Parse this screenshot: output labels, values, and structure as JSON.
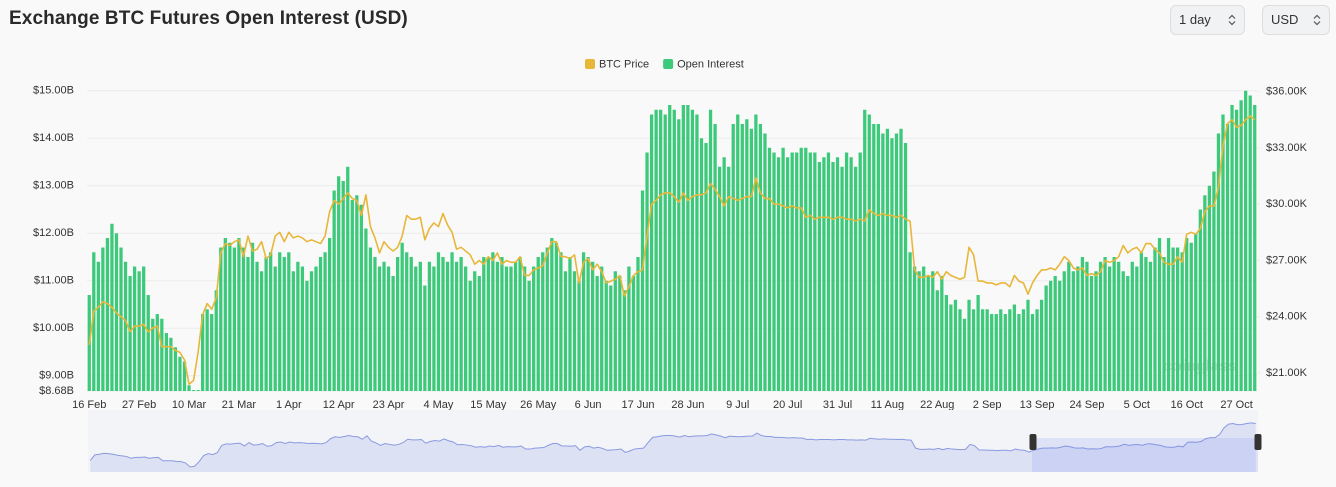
{
  "title": "Exchange BTC Futures Open Interest (USD)",
  "controls": {
    "interval": "1 day",
    "currency": "USD"
  },
  "chart_data": {
    "type": "bar",
    "watermark": "coinglass",
    "categories": [
      "16 Feb",
      null,
      null,
      null,
      null,
      null,
      null,
      null,
      null,
      null,
      null,
      "27 Feb",
      null,
      null,
      null,
      null,
      null,
      null,
      null,
      null,
      null,
      null,
      "10 Mar",
      null,
      null,
      null,
      null,
      null,
      null,
      null,
      null,
      null,
      null,
      "21 Mar",
      null,
      null,
      null,
      null,
      null,
      null,
      null,
      null,
      null,
      null,
      "1 Apr",
      null,
      null,
      null,
      null,
      null,
      null,
      null,
      null,
      null,
      null,
      "12 Apr",
      null,
      null,
      null,
      null,
      null,
      null,
      null,
      null,
      null,
      null,
      "23 Apr",
      null,
      null,
      null,
      null,
      null,
      null,
      null,
      null,
      null,
      null,
      "4 May",
      null,
      null,
      null,
      null,
      null,
      null,
      null,
      null,
      null,
      null,
      "15 May",
      null,
      null,
      null,
      null,
      null,
      null,
      null,
      null,
      null,
      null,
      "26 May",
      null,
      null,
      null,
      null,
      null,
      null,
      null,
      null,
      null,
      null,
      "6 Jun",
      null,
      null,
      null,
      null,
      null,
      null,
      null,
      null,
      null,
      null,
      "17 Jun",
      null,
      null,
      null,
      null,
      null,
      null,
      null,
      null,
      null,
      null,
      "28 Jun",
      null,
      null,
      null,
      null,
      null,
      null,
      null,
      null,
      null,
      null,
      "9 Jul",
      null,
      null,
      null,
      null,
      null,
      null,
      null,
      null,
      null,
      null,
      "20 Jul",
      null,
      null,
      null,
      null,
      null,
      null,
      null,
      null,
      null,
      null,
      "31 Jul",
      null,
      null,
      null,
      null,
      null,
      null,
      null,
      null,
      null,
      null,
      "11 Aug",
      null,
      null,
      null,
      null,
      null,
      null,
      null,
      null,
      null,
      null,
      "22 Aug",
      null,
      null,
      null,
      null,
      null,
      null,
      null,
      null,
      null,
      null,
      "2 Sep",
      null,
      null,
      null,
      null,
      null,
      null,
      null,
      null,
      null,
      null,
      "13 Sep",
      null,
      null,
      null,
      null,
      null,
      null,
      null,
      null,
      null,
      null,
      "24 Sep",
      null,
      null,
      null,
      null,
      null,
      null,
      null,
      null,
      null,
      null,
      "5 Oct",
      null,
      null,
      null,
      null,
      null,
      null,
      null,
      null,
      null,
      null,
      "16 Oct",
      null,
      null,
      null,
      null,
      null,
      null,
      null,
      null,
      null,
      null,
      "27 Oct",
      null,
      null,
      null,
      null
    ],
    "series": [
      {
        "name": "BTC Price",
        "type": "line",
        "axis": "y2",
        "color": "#e8b73a",
        "values": [
          22.5,
          24.3,
          24.5,
          24.8,
          24.7,
          24.5,
          24.2,
          24.0,
          23.8,
          23.2,
          23.5,
          23.5,
          23.6,
          23.2,
          23.4,
          23.5,
          22.4,
          22.4,
          22.4,
          22.2,
          22.1,
          21.7,
          20.4,
          20.6,
          22.1,
          24.1,
          24.7,
          24.4,
          25.0,
          27.4,
          27.9,
          27.8,
          28.0,
          28.1,
          27.2,
          28.3,
          27.5,
          27.6,
          28.0,
          27.1,
          27.3,
          28.3,
          28.5,
          28.0,
          28.5,
          28.2,
          28.3,
          28.2,
          28.0,
          28.1,
          28.0,
          27.9,
          28.3,
          29.6,
          30.2,
          30.0,
          30.3,
          30.6,
          30.3,
          30.2,
          29.4,
          30.5,
          28.8,
          28.2,
          27.4,
          28.0,
          27.7,
          27.5,
          27.7,
          28.3,
          29.4,
          29.2,
          29.2,
          29.3,
          28.1,
          28.7,
          29.0,
          28.8,
          29.5,
          28.9,
          28.5,
          27.6,
          27.7,
          27.5,
          27.3,
          26.8,
          27.0,
          26.8,
          27.2,
          27.0,
          27.4,
          26.8,
          27.0,
          26.9,
          26.9,
          27.2,
          26.2,
          26.2,
          26.5,
          26.6,
          26.7,
          27.4,
          28.0,
          28.0,
          27.2,
          27.2,
          27.1,
          27.3,
          25.8,
          26.9,
          27.1,
          26.5,
          26.8,
          26.4,
          25.8,
          25.9,
          26.0,
          26.2,
          25.1,
          25.6,
          26.2,
          26.4,
          26.5,
          28.3,
          30.0,
          30.2,
          30.5,
          30.6,
          30.6,
          30.4,
          30.1,
          30.6,
          30.2,
          30.4,
          30.5,
          30.5,
          30.6,
          31.1,
          30.8,
          30.4,
          29.9,
          30.4,
          30.3,
          30.2,
          30.3,
          30.4,
          30.4,
          31.4,
          30.6,
          30.3,
          30.3,
          30.0,
          30.0,
          29.9,
          29.8,
          29.9,
          29.8,
          29.8,
          29.3,
          29.4,
          29.2,
          29.3,
          29.3,
          29.3,
          29.2,
          29.3,
          29.3,
          29.2,
          29.2,
          29.1,
          29.2,
          29.1,
          29.7,
          29.5,
          29.4,
          29.5,
          29.4,
          29.4,
          29.3,
          29.4,
          29.2,
          29.1,
          26.5,
          26.1,
          26.1,
          26.2,
          26.1,
          26.4,
          26.0,
          26.4,
          26.2,
          26.1,
          26.0,
          26.1,
          27.7,
          27.3,
          25.9,
          25.9,
          25.8,
          25.8,
          25.7,
          25.8,
          25.8,
          25.6,
          26.2,
          25.9,
          25.8,
          25.2,
          25.8,
          26.2,
          26.5,
          26.5,
          26.6,
          26.5,
          26.8,
          27.2,
          27.0,
          26.6,
          26.5,
          26.6,
          26.2,
          26.3,
          26.2,
          26.4,
          27.0,
          26.9,
          27.0,
          27.2,
          27.8,
          27.4,
          27.6,
          27.7,
          27.4,
          27.9,
          27.9,
          27.6,
          27.4,
          26.9,
          26.8,
          26.8,
          27.2,
          26.9,
          28.4,
          28.5,
          28.4,
          28.7,
          29.6,
          29.9,
          29.9,
          30.9,
          33.1,
          34.3,
          34.5,
          34.1,
          34.2,
          34.5,
          34.7,
          34.5
        ]
      },
      {
        "name": "Open Interest",
        "type": "bar",
        "axis": "y",
        "color": "#3cc97a",
        "values": [
          10.7,
          11.6,
          11.4,
          11.7,
          11.9,
          12.2,
          12.0,
          11.7,
          11.4,
          11.1,
          11.3,
          11.2,
          11.3,
          10.7,
          10.2,
          10.3,
          10.2,
          9.9,
          9.8,
          9.6,
          9.4,
          9.3,
          8.8,
          8.7,
          8.7,
          10.3,
          10.4,
          10.3,
          10.8,
          11.7,
          11.9,
          11.8,
          11.7,
          11.9,
          11.7,
          11.5,
          11.8,
          11.4,
          11.2,
          11.5,
          11.6,
          11.3,
          11.6,
          11.5,
          11.6,
          11.2,
          11.4,
          11.3,
          11.0,
          11.2,
          11.3,
          11.5,
          11.6,
          11.9,
          12.9,
          13.2,
          13.1,
          13.4,
          12.7,
          12.8,
          12.6,
          12.1,
          11.7,
          11.5,
          11.3,
          11.4,
          11.3,
          11.1,
          11.5,
          11.8,
          11.6,
          11.5,
          11.3,
          11.4,
          10.9,
          11.4,
          11.3,
          11.6,
          11.5,
          11.4,
          11.6,
          11.4,
          11.5,
          11.3,
          11.0,
          11.2,
          11.1,
          11.5,
          11.5,
          11.6,
          11.4,
          11.5,
          11.3,
          11.3,
          11.4,
          11.5,
          11.3,
          11.0,
          11.3,
          11.5,
          11.6,
          11.7,
          11.9,
          11.8,
          11.6,
          11.2,
          11.5,
          11.2,
          11.0,
          11.6,
          11.5,
          11.4,
          11.1,
          11.3,
          11.0,
          10.9,
          11.2,
          11.1,
          10.8,
          11.3,
          11.1,
          11.5,
          12.9,
          13.7,
          14.5,
          14.6,
          14.6,
          14.5,
          14.7,
          14.6,
          14.4,
          14.7,
          14.7,
          14.6,
          14.5,
          14.0,
          13.9,
          14.6,
          14.3,
          13.4,
          13.6,
          13.4,
          14.3,
          14.5,
          14.3,
          14.4,
          14.2,
          14.5,
          14.3,
          14.1,
          13.8,
          13.7,
          13.6,
          13.8,
          13.6,
          13.7,
          13.7,
          13.8,
          13.8,
          13.7,
          13.7,
          13.5,
          13.6,
          13.7,
          13.5,
          13.6,
          13.4,
          13.7,
          13.6,
          13.4,
          13.7,
          14.6,
          14.5,
          14.3,
          14.3,
          14.1,
          14.2,
          14.0,
          14.1,
          14.2,
          13.9,
          11.6,
          11.3,
          11.2,
          11.3,
          11.1,
          11.2,
          10.8,
          11.1,
          10.7,
          10.5,
          10.6,
          10.4,
          10.2,
          10.6,
          10.4,
          10.7,
          10.4,
          10.4,
          10.3,
          10.3,
          10.4,
          10.3,
          10.4,
          10.5,
          10.3,
          10.4,
          10.6,
          10.3,
          10.4,
          10.6,
          10.9,
          11.0,
          11.1,
          11.0,
          11.2,
          11.4,
          11.2,
          11.3,
          11.5,
          11.4,
          11.1,
          11.2,
          11.4,
          11.5,
          11.3,
          11.5,
          11.4,
          11.2,
          11.1,
          11.4,
          11.3,
          11.6,
          11.5,
          11.4,
          11.7,
          11.9,
          11.5,
          11.9,
          11.7,
          11.7,
          11.6,
          11.9,
          11.8,
          12.0,
          12.5,
          12.8,
          13.0,
          13.3,
          14.1,
          14.5,
          14.3,
          14.7,
          14.6,
          14.8,
          15.0,
          14.9,
          14.7
        ]
      }
    ],
    "ylim": [
      8.68,
      15.1
    ],
    "yticks": [
      {
        "value": 8.68,
        "label": "$8.68B"
      },
      {
        "value": 9,
        "label": "$9.00B"
      },
      {
        "value": 10,
        "label": "$10.00B"
      },
      {
        "value": 11,
        "label": "$11.00B"
      },
      {
        "value": 12,
        "label": "$12.00B"
      },
      {
        "value": 13,
        "label": "$13.00B"
      },
      {
        "value": 14,
        "label": "$14.00B"
      },
      {
        "value": 15,
        "label": "$15.00B"
      }
    ],
    "y2lim": [
      20.04,
      36.3
    ],
    "y2ticks": [
      {
        "value": 21,
        "label": "$21.00K"
      },
      {
        "value": 24,
        "label": "$24.00K"
      },
      {
        "value": 27,
        "label": "$27.00K"
      },
      {
        "value": 30,
        "label": "$30.00K"
      },
      {
        "value": 33,
        "label": "$33.00K"
      },
      {
        "value": 36,
        "label": "$36.00K"
      }
    ],
    "grid": true,
    "legend": "top"
  }
}
